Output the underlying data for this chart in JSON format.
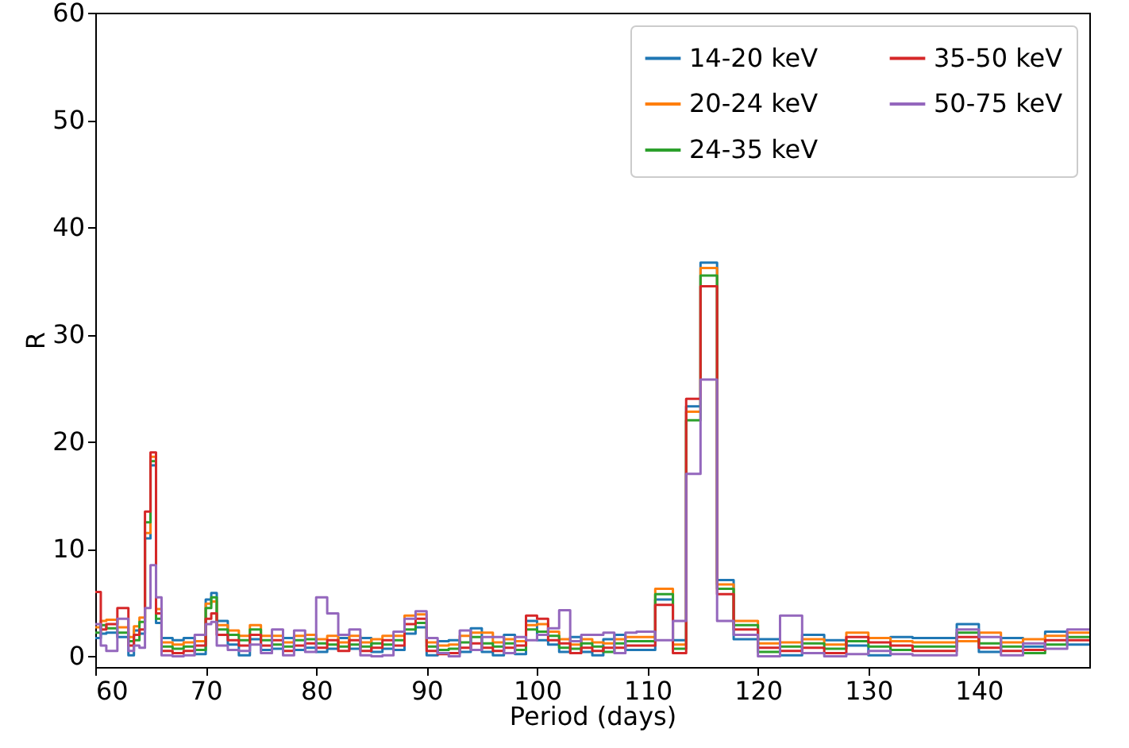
{
  "chart_data": {
    "type": "step",
    "xlabel": "Period (days)",
    "ylabel": "R",
    "xlim": [
      60,
      150
    ],
    "xticks": [
      60,
      70,
      80,
      90,
      100,
      110,
      120,
      130,
      140
    ],
    "ylim": [
      -1,
      60
    ],
    "yticks": [
      0,
      10,
      20,
      30,
      40,
      50,
      60
    ],
    "grid": false,
    "legend": "top right",
    "line_style": "solid",
    "marker": "none",
    "x": [
      60,
      60.5,
      61,
      62,
      63,
      63.5,
      64,
      64.5,
      65,
      65.5,
      66,
      67,
      68,
      69,
      70,
      70.5,
      71,
      72,
      73,
      74,
      75,
      76,
      77,
      78,
      79,
      80,
      81,
      82,
      83,
      84,
      85,
      86,
      87,
      88,
      89,
      90,
      91,
      92,
      93,
      94,
      95,
      96,
      97,
      98,
      99,
      100,
      101,
      102,
      103,
      104,
      105,
      106,
      107,
      108,
      109,
      110.7,
      112.3,
      113.5,
      114.8,
      116.3,
      117.8,
      120,
      122,
      124,
      126,
      128,
      130,
      132,
      134,
      136,
      138,
      140,
      142,
      144,
      146,
      148,
      150
    ],
    "series": [
      {
        "name": "14-20 keV",
        "color": "#1f77b4",
        "values": [
          1.7,
          2.1,
          2.2,
          1.8,
          0.1,
          2.4,
          2.1,
          11,
          17.8,
          3.1,
          1.7,
          1.5,
          1.7,
          0.2,
          5.3,
          5.9,
          3.3,
          1.1,
          0.1,
          1.6,
          0.6,
          0.7,
          1.7,
          0.6,
          0.8,
          0.4,
          0.7,
          1.7,
          0.7,
          1.7,
          0.4,
          0.7,
          0.6,
          2.1,
          2.7,
          0.1,
          1.4,
          1.5,
          0.4,
          2.6,
          0.4,
          0.1,
          2.0,
          0.2,
          3.3,
          1.5,
          1.1,
          0.4,
          1.8,
          0.4,
          0.1,
          1.6,
          2.0,
          0.6,
          0.6,
          5.3,
          1.5,
          23.3,
          36.7,
          7.1,
          1.6,
          1.6,
          0.1,
          2.0,
          1.5,
          1.0,
          0.1,
          1.8,
          1.7,
          1.7,
          3.0,
          0.4,
          1.7,
          0.9,
          2.3,
          1.1,
          1.1
        ]
      },
      {
        "name": "20-24 keV",
        "color": "#ff7f0e",
        "values": [
          2.7,
          3.3,
          3.4,
          2.7,
          1.8,
          2.8,
          3.6,
          11.5,
          18.6,
          4.4,
          1.3,
          1.1,
          1.3,
          1.4,
          4.9,
          5.1,
          2.9,
          2.4,
          1.9,
          2.9,
          1.9,
          1.9,
          1.3,
          1.9,
          2,
          1.6,
          1.9,
          1.3,
          1.9,
          1.3,
          1.6,
          1.9,
          1.9,
          3.8,
          3.9,
          1.3,
          1.0,
          1.1,
          1.9,
          2.2,
          2.2,
          1.3,
          1.6,
          1.4,
          2.9,
          3.0,
          2.3,
          1.6,
          1.1,
          1.6,
          1.3,
          1.2,
          1.6,
          1.8,
          1.8,
          6.3,
          1.1,
          22.8,
          36.2,
          6.7,
          3.3,
          1.2,
          1.3,
          1.6,
          1.1,
          2.2,
          1.7,
          1.4,
          1.3,
          1.3,
          1.4,
          2.2,
          1.3,
          1.6,
          1.9,
          2.2,
          2.2
        ]
      },
      {
        "name": "24-35 keV",
        "color": "#2ca02c",
        "values": [
          2.2,
          2.9,
          2.6,
          2.2,
          1.4,
          1.5,
          3.2,
          12.5,
          18.2,
          3.5,
          0.9,
          0.7,
          0.9,
          0.6,
          4.5,
          5.5,
          2.5,
          2,
          1.5,
          2.5,
          1.5,
          1.1,
          0.9,
          1.5,
          1.6,
          1.2,
          1.1,
          0.9,
          1.1,
          0.9,
          1.2,
          1.1,
          1.5,
          2.5,
          3.1,
          0.9,
          0.6,
          0.7,
          1.3,
          1.8,
          1.2,
          0.9,
          1.2,
          0.6,
          2.5,
          2.3,
          1.9,
          0.8,
          0.7,
          1.2,
          0.9,
          0.4,
          1.2,
          1.4,
          1.4,
          5.8,
          0.7,
          22,
          35.5,
          6.3,
          2.9,
          0.4,
          0.9,
          1.2,
          0.7,
          1.4,
          0.9,
          0.6,
          0.9,
          0.9,
          2.2,
          1.2,
          0.9,
          0.3,
          1.1,
          1.8,
          1.8
        ]
      },
      {
        "name": "35-50 keV",
        "color": "#d62728",
        "values": [
          6,
          2.5,
          3,
          4.5,
          1,
          2,
          2.5,
          13.5,
          19,
          4,
          0.5,
          0.3,
          0.5,
          1,
          3.5,
          4,
          2,
          1.5,
          1,
          2,
          1,
          1.5,
          0.5,
          1,
          1.2,
          0.8,
          1.5,
          0.5,
          1.5,
          0.5,
          0.8,
          1.5,
          1,
          3,
          3.5,
          0.5,
          0.2,
          0.3,
          0.8,
          1.2,
          0.8,
          0.5,
          0.8,
          1,
          3.8,
          3.5,
          1.5,
          1.2,
          0.3,
          0.8,
          0.5,
          0.8,
          0.8,
          1,
          1,
          4.8,
          0.3,
          24,
          34.5,
          5.8,
          2.5,
          0.8,
          0.5,
          0.8,
          0.3,
          1.8,
          1.3,
          1,
          0.5,
          0.5,
          1.8,
          0.8,
          0.5,
          0.6,
          1.5,
          1.5,
          1.5
        ]
      },
      {
        "name": "50-75 keV",
        "color": "#9467bd",
        "values": [
          3,
          1,
          0.5,
          3.5,
          0.5,
          1,
          0.8,
          4.5,
          8.5,
          5.5,
          0.1,
          0,
          0.1,
          2.0,
          3,
          3.2,
          1,
          0.6,
          0.5,
          1.1,
          0.3,
          2.5,
          0.1,
          2.4,
          0.4,
          5.5,
          4,
          2,
          2.5,
          0.1,
          0,
          0.1,
          2.3,
          3.5,
          4.2,
          1.7,
          0.3,
          0,
          2.4,
          0.6,
          1.8,
          1.8,
          0.3,
          1.8,
          1.5,
          2.0,
          2.6,
          4.3,
          1.4,
          2,
          2,
          2.2,
          0.3,
          2.2,
          2.3,
          1.5,
          3.3,
          17,
          25.8,
          3.3,
          2.0,
          0,
          3.8,
          0.3,
          0,
          0.2,
          0.5,
          0.2,
          0.1,
          0.1,
          2.5,
          1.8,
          0.1,
          1.2,
          0.7,
          2.5,
          2.5
        ]
      }
    ]
  }
}
